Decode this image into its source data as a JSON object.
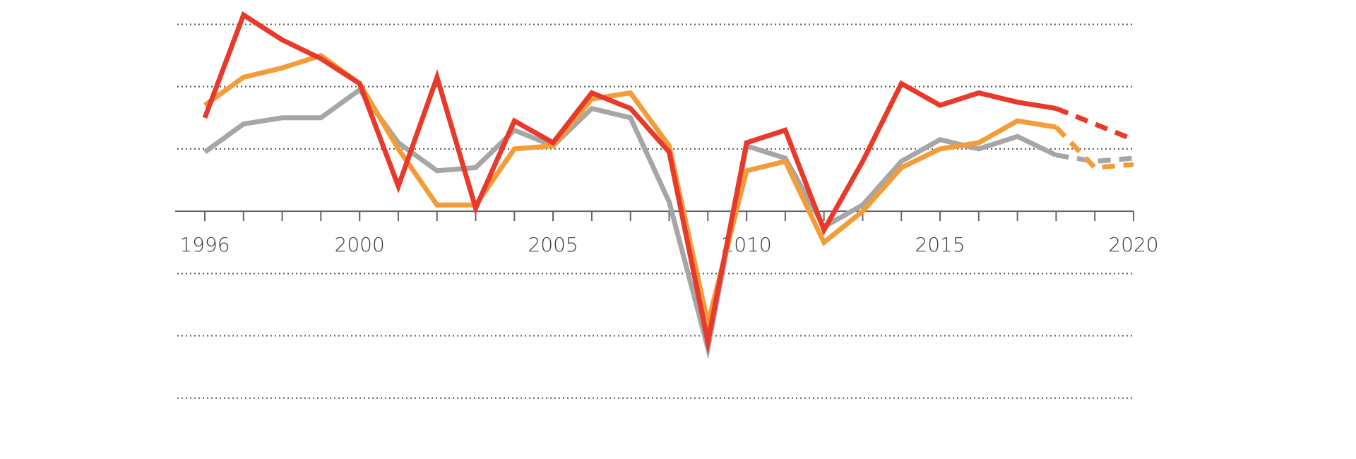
{
  "chart_data": {
    "type": "line",
    "x": [
      1996,
      1997,
      1998,
      1999,
      2000,
      2001,
      2002,
      2003,
      2004,
      2005,
      2006,
      2007,
      2008,
      2009,
      2010,
      2011,
      2012,
      2013,
      2014,
      2015,
      2016,
      2017,
      2018,
      2019,
      2020
    ],
    "xlim": [
      1996,
      2020
    ],
    "xticks": [
      1996,
      2000,
      2005,
      2010,
      2015,
      2020
    ],
    "ylim": [
      -6.3,
      6.5
    ],
    "yticks": [
      -6,
      -4,
      -2,
      2,
      4,
      6
    ],
    "grid": true,
    "dashed_from": 2018,
    "series": [
      {
        "color": "#a6a6a6",
        "values": [
          1.9,
          2.8,
          3.0,
          3.0,
          3.9,
          2.2,
          1.3,
          1.4,
          2.6,
          2.1,
          3.3,
          3.0,
          0.3,
          -4.4,
          2.1,
          1.7,
          -0.5,
          0.2,
          1.6,
          2.3,
          2.0,
          2.4,
          1.8,
          1.6,
          1.7
        ]
      },
      {
        "color": "#f39c3a",
        "values": [
          3.4,
          4.3,
          4.6,
          5.0,
          4.1,
          2.0,
          0.2,
          0.2,
          2.0,
          2.1,
          3.6,
          3.8,
          2.1,
          -3.6,
          1.3,
          1.6,
          -1.0,
          0.0,
          1.4,
          2.0,
          2.2,
          2.9,
          2.7,
          1.4,
          1.5
        ]
      },
      {
        "color": "#e8392a",
        "values": [
          3.0,
          6.3,
          5.5,
          4.9,
          4.1,
          0.8,
          4.3,
          0.1,
          2.9,
          2.2,
          3.8,
          3.3,
          1.9,
          -4.2,
          2.2,
          2.6,
          -0.6,
          1.6,
          4.1,
          3.4,
          3.8,
          3.5,
          3.3,
          2.8,
          2.3
        ]
      }
    ]
  }
}
